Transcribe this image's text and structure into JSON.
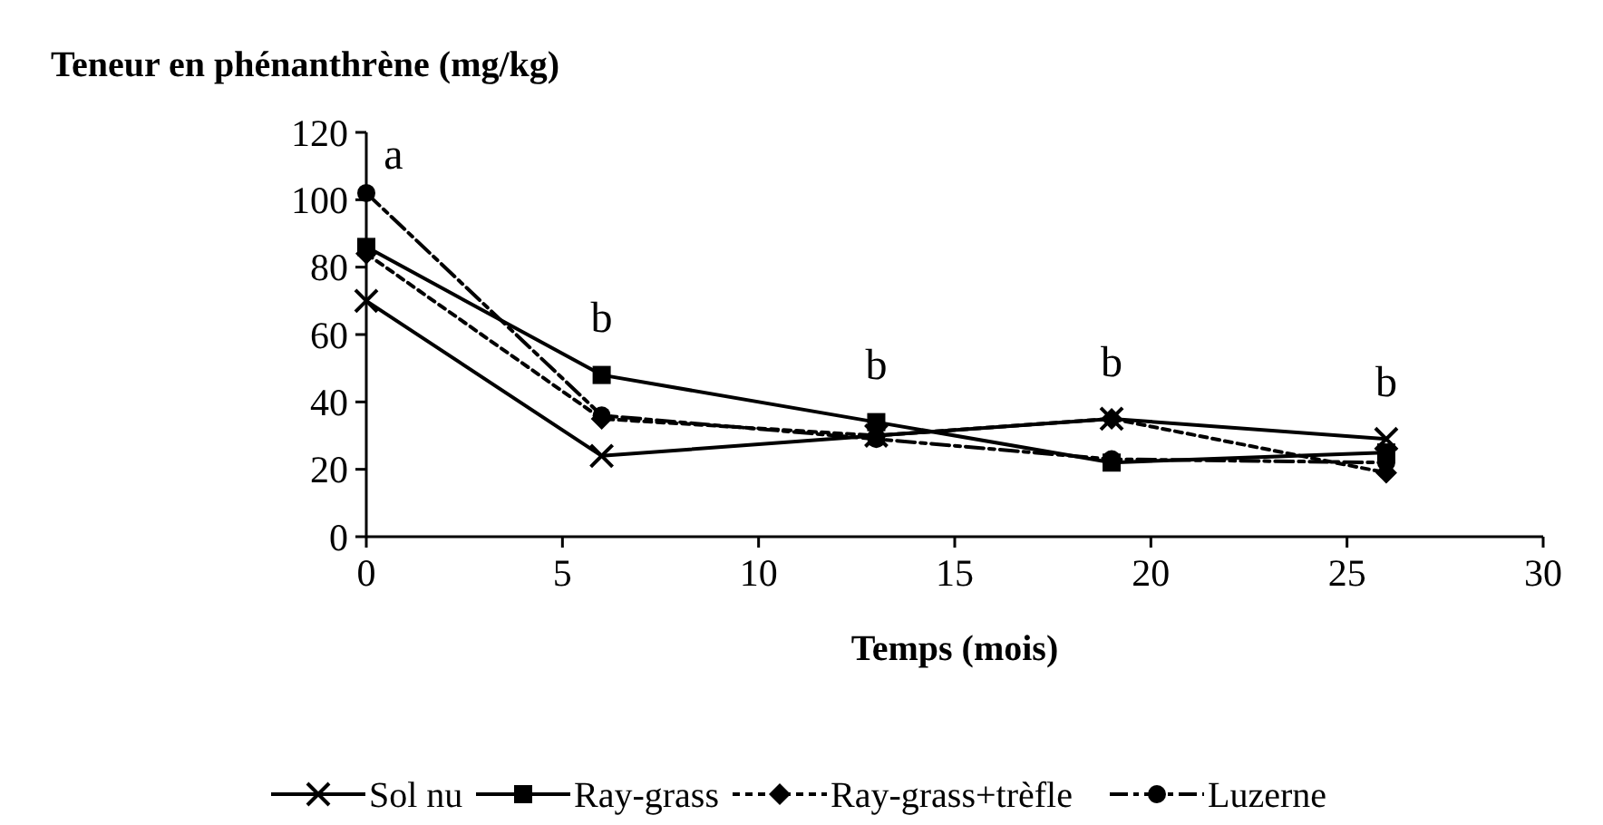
{
  "chart_data": {
    "type": "line",
    "title": "Teneur en phénanthrène (mg/kg)",
    "xlabel": "Temps (mois)",
    "x": [
      0,
      6,
      13,
      19,
      26
    ],
    "series": [
      {
        "name": "Sol nu",
        "color": "#000000",
        "values": [
          70,
          24,
          30,
          35,
          29
        ],
        "marker": "cross",
        "line_style": "solid"
      },
      {
        "name": "Ray-grass",
        "color": "#000000",
        "values": [
          86,
          48,
          34,
          22,
          25
        ],
        "marker": "square",
        "line_style": "solid"
      },
      {
        "name": "Ray-grass+trèfle",
        "color": "#000000",
        "values": [
          84,
          35,
          30,
          35,
          19
        ],
        "marker": "diamond",
        "line_style": "dotted"
      },
      {
        "name": "Luzerne",
        "color": "#000000",
        "values": [
          102,
          36,
          29,
          23,
          22
        ],
        "marker": "circle",
        "line_style": "dashed"
      }
    ],
    "annotations": [
      "a",
      "b",
      "b",
      "b",
      "b"
    ],
    "xlim": [
      0,
      30
    ],
    "xticks": [
      0,
      5,
      10,
      15,
      20,
      25,
      30
    ],
    "ylim": [
      0,
      120
    ],
    "yticks": [
      0,
      20,
      40,
      60,
      80,
      100,
      120
    ],
    "grid": false,
    "legend": "bottom"
  }
}
